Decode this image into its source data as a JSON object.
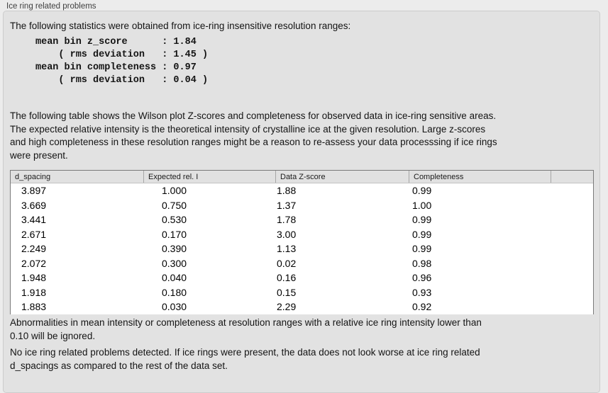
{
  "panel": {
    "title": "Ice ring related problems",
    "intro": "The following statistics were obtained from ice-ring insensitive resolution ranges:",
    "stats_lines": [
      "mean bin z_score      : 1.84",
      "    ( rms deviation   : 1.45 )",
      "mean bin completeness : 0.97",
      "    ( rms deviation   : 0.04 )"
    ],
    "description_lines": [
      "The following table shows the Wilson plot Z-scores and completeness for observed data in ice-ring sensitive areas.",
      "The expected relative intensity is the theoretical intensity of crystalline ice at the given resolution. Large z-scores",
      "and high completeness in these resolution ranges might be a reason to re-assess your data processsing if ice rings",
      "were present."
    ],
    "table": {
      "columns": [
        "d_spacing",
        "Expected rel. I",
        "Data Z-score",
        "Completeness"
      ],
      "rows": [
        [
          "3.897",
          "1.000",
          "1.88",
          "0.99"
        ],
        [
          "3.669",
          "0.750",
          "1.37",
          "1.00"
        ],
        [
          "3.441",
          "0.530",
          "1.78",
          "0.99"
        ],
        [
          "2.671",
          "0.170",
          "3.00",
          "0.99"
        ],
        [
          "2.249",
          "0.390",
          "1.13",
          "0.99"
        ],
        [
          "2.072",
          "0.300",
          "0.02",
          "0.98"
        ],
        [
          "1.948",
          "0.040",
          "0.16",
          "0.96"
        ],
        [
          "1.918",
          "0.180",
          "0.15",
          "0.93"
        ],
        [
          "1.883",
          "0.030",
          "2.29",
          "0.92"
        ]
      ]
    },
    "note_lines": [
      "Abnormalities in mean intensity or completeness at resolution ranges with a relative ice ring intensity lower than",
      "0.10 will be ignored."
    ],
    "conclusion_lines": [
      "No ice ring related problems detected. If ice rings were present, the data does not look worse at ice ring related",
      "d_spacings as compared to the rest of the data set."
    ],
    "colors": {
      "outer_background": "#ececec",
      "panel_background": "#e2e2e2",
      "table_border": "#7a7a7a",
      "table_header_background": "#e1e1e1",
      "table_row_background": "#ffffff"
    }
  }
}
